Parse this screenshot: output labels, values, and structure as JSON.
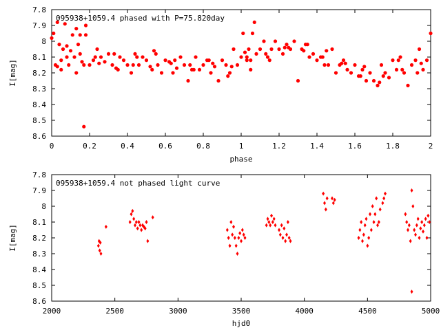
{
  "chart_data": [
    {
      "type": "scatter",
      "title": "095938+1059.4 phased with P=75.820day",
      "xlabel": "phase",
      "ylabel": "I[mag]",
      "xlim": [
        0,
        2
      ],
      "ylim": [
        8.6,
        7.8
      ],
      "y_inverted": true,
      "grid": false,
      "xticks": [
        "0",
        "0.2",
        "0.4",
        "0.6",
        "0.8",
        "1",
        "1.2",
        "1.4",
        "1.6",
        "1.8",
        "2"
      ],
      "yticks": [
        "7.8",
        "7.9",
        "8",
        "8.1",
        "8.2",
        "8.3",
        "8.4",
        "8.5",
        "8.6"
      ],
      "marker": "filled-circle",
      "marker_color": "#ff0000",
      "series": [
        {
          "x": [
            0.0,
            0.01,
            0.02,
            0.03,
            0.04,
            0.05,
            0.06,
            0.07,
            0.08,
            0.09,
            0.1,
            0.11,
            0.12,
            0.13,
            0.14,
            0.15,
            0.16,
            0.17,
            0.18,
            0.2,
            0.22,
            0.24,
            0.26,
            0.28,
            0.3,
            0.32,
            0.34,
            0.36,
            0.38,
            0.4,
            0.42,
            0.44,
            0.46,
            0.48,
            0.5,
            0.52,
            0.54,
            0.56,
            0.58,
            0.6,
            0.62,
            0.64,
            0.66,
            0.68,
            0.7,
            0.72,
            0.74,
            0.76,
            0.78,
            0.8,
            0.82,
            0.84,
            0.86,
            0.88,
            0.9,
            0.92,
            0.94,
            0.96,
            0.98,
            1.0,
            1.01,
            1.02,
            1.03,
            1.04,
            1.05,
            1.06,
            1.07,
            1.08,
            1.1,
            1.12,
            1.14,
            1.16,
            1.18,
            1.2,
            1.22,
            1.24,
            1.26,
            1.28,
            1.3,
            1.32,
            1.34,
            1.36,
            1.38,
            1.4,
            1.42,
            1.44,
            1.46,
            1.48,
            1.5,
            1.52,
            1.54,
            1.56,
            1.58,
            1.6,
            1.62,
            1.64,
            1.66,
            1.68,
            1.7,
            1.72,
            1.74,
            1.76,
            1.78,
            1.8,
            1.82,
            1.84,
            1.86,
            1.88,
            1.9,
            1.92,
            1.94,
            1.96,
            1.98,
            2.0,
            0.05,
            0.15,
            0.25,
            0.35,
            0.45,
            0.55,
            0.65,
            0.75,
            0.85,
            0.95,
            1.05,
            1.15,
            1.25,
            1.35,
            1.45,
            1.55,
            1.65,
            1.75,
            1.85,
            1.95,
            0.03,
            0.08,
            0.13,
            0.18,
            0.23,
            0.33,
            0.43,
            0.53,
            0.63,
            0.73,
            0.83,
            0.93,
            1.03,
            1.13,
            1.23,
            1.33,
            1.43,
            1.53,
            1.63,
            1.73,
            1.83,
            1.93,
            0.17
          ],
          "y": [
            7.98,
            7.95,
            8.15,
            7.88,
            8.02,
            8.18,
            8.05,
            7.89,
            8.03,
            8.15,
            8.06,
            7.96,
            8.1,
            8.2,
            8.02,
            7.96,
            8.13,
            8.15,
            7.96,
            8.15,
            8.12,
            8.05,
            8.1,
            8.13,
            8.08,
            8.15,
            8.17,
            8.1,
            8.12,
            8.15,
            8.2,
            8.08,
            8.15,
            8.1,
            8.12,
            8.16,
            8.06,
            8.15,
            8.2,
            8.12,
            8.13,
            8.2,
            8.17,
            8.1,
            8.15,
            8.25,
            8.18,
            8.1,
            8.18,
            8.15,
            8.12,
            8.2,
            8.16,
            8.25,
            8.12,
            8.15,
            8.2,
            8.05,
            8.15,
            8.1,
            7.95,
            8.07,
            8.1,
            8.05,
            8.12,
            7.95,
            7.88,
            8.08,
            8.05,
            8.0,
            8.1,
            8.05,
            8.0,
            8.05,
            8.08,
            8.02,
            8.05,
            8.0,
            8.25,
            8.05,
            8.02,
            8.1,
            8.08,
            8.12,
            8.1,
            8.15,
            8.15,
            8.05,
            8.2,
            8.15,
            8.12,
            8.18,
            8.2,
            8.15,
            8.22,
            8.18,
            8.25,
            8.2,
            8.25,
            8.28,
            8.15,
            8.2,
            8.23,
            8.12,
            8.18,
            8.1,
            8.2,
            8.28,
            8.15,
            8.12,
            8.05,
            8.18,
            8.12,
            7.95,
            8.12,
            8.08,
            8.14,
            8.18,
            8.1,
            8.08,
            8.12,
            8.18,
            8.14,
            8.16,
            8.18,
            8.12,
            8.04,
            8.02,
            8.06,
            8.14,
            8.16,
            8.22,
            8.18,
            8.14,
            8.16,
            8.1,
            7.92,
            7.9,
            8.1,
            8.08,
            8.15,
            8.18,
            8.14,
            8.15,
            8.12,
            8.22,
            8.12,
            8.08,
            8.04,
            8.06,
            8.1,
            8.14,
            8.22,
            8.26,
            8.12,
            8.2,
            8.54
          ]
        }
      ]
    },
    {
      "type": "scatter",
      "title": "095938+1059.4 not phased light curve",
      "xlabel": "hjd0",
      "ylabel": "I[mag]",
      "xlim": [
        2000,
        5000
      ],
      "ylim": [
        8.6,
        7.8
      ],
      "y_inverted": true,
      "grid": false,
      "xticks": [
        "2000",
        "2500",
        "3000",
        "3500",
        "4000",
        "4500",
        "5000"
      ],
      "yticks": [
        "7.8",
        "7.9",
        "8",
        "8.1",
        "8.2",
        "8.3",
        "8.4",
        "8.5",
        "8.6"
      ],
      "marker": "filled-diamond",
      "marker_color": "#ff0000",
      "series": [
        {
          "x": [
            2370,
            2375,
            2380,
            2385,
            2390,
            2430,
            2620,
            2630,
            2640,
            2650,
            2660,
            2670,
            2680,
            2690,
            2700,
            2710,
            2720,
            2730,
            2740,
            2750,
            2760,
            2800,
            3390,
            3400,
            3410,
            3420,
            3430,
            3440,
            3450,
            3460,
            3470,
            3480,
            3490,
            3500,
            3510,
            3520,
            3530,
            3700,
            3710,
            3720,
            3730,
            3740,
            3750,
            3760,
            3770,
            3800,
            3810,
            3820,
            3830,
            3840,
            3850,
            3860,
            3870,
            3880,
            3890,
            4150,
            4160,
            4170,
            4180,
            4220,
            4230,
            4240,
            4430,
            4440,
            4450,
            4460,
            4470,
            4480,
            4490,
            4500,
            4510,
            4520,
            4530,
            4540,
            4550,
            4560,
            4570,
            4580,
            4590,
            4600,
            4620,
            4630,
            4640,
            4800,
            4810,
            4820,
            4830,
            4840,
            4850,
            4860,
            4870,
            4880,
            4890,
            4900,
            4910,
            4920,
            4930,
            4940,
            4950,
            4960,
            4970,
            4980,
            4990,
            4850
          ],
          "y": [
            8.25,
            8.22,
            8.28,
            8.23,
            8.3,
            8.13,
            8.1,
            8.05,
            8.03,
            8.08,
            8.12,
            8.1,
            8.14,
            8.1,
            8.12,
            8.15,
            8.12,
            8.13,
            8.14,
            8.1,
            8.22,
            8.07,
            8.15,
            8.2,
            8.25,
            8.1,
            8.18,
            8.13,
            8.2,
            8.25,
            8.3,
            8.2,
            8.17,
            8.22,
            8.15,
            8.18,
            8.2,
            8.12,
            8.08,
            8.1,
            8.12,
            8.06,
            8.1,
            8.08,
            8.12,
            8.15,
            8.18,
            8.12,
            8.2,
            8.14,
            8.22,
            8.18,
            8.1,
            8.2,
            8.22,
            7.92,
            7.98,
            8.02,
            7.95,
            7.95,
            7.98,
            7.96,
            8.2,
            8.15,
            8.1,
            8.22,
            8.18,
            8.12,
            8.08,
            8.25,
            8.2,
            8.05,
            8.15,
            8.0,
            8.1,
            8.05,
            7.95,
            8.12,
            8.1,
            8.02,
            7.98,
            7.95,
            7.92,
            8.05,
            8.1,
            8.15,
            8.12,
            8.22,
            7.9,
            8.0,
            8.15,
            8.18,
            8.12,
            8.08,
            8.2,
            8.14,
            8.1,
            8.16,
            8.12,
            8.08,
            8.2,
            8.06,
            8.1,
            8.54
          ]
        }
      ]
    }
  ]
}
